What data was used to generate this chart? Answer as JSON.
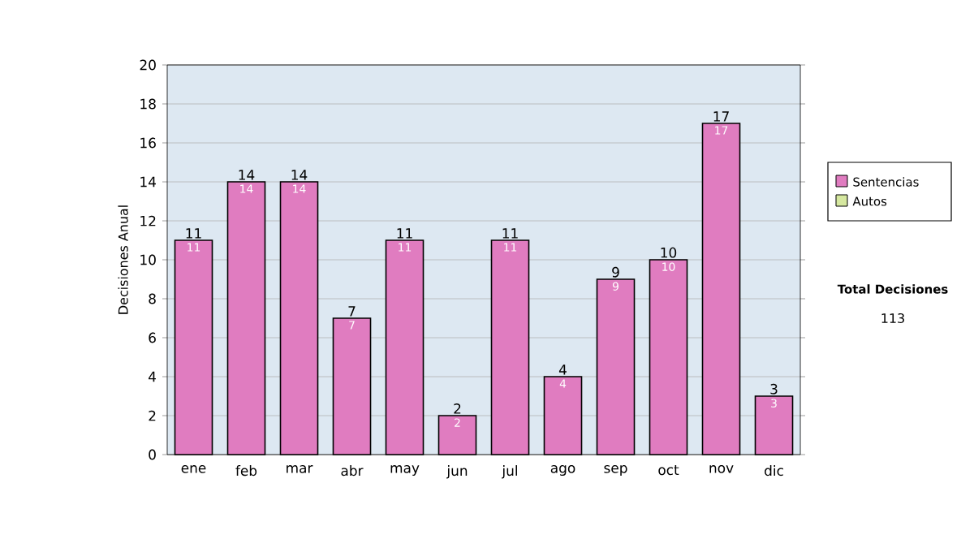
{
  "chart_data": {
    "type": "bar",
    "ylabel": "Decisiones Anual",
    "categories": [
      "ene",
      "feb",
      "mar",
      "abr",
      "may",
      "jun",
      "jul",
      "ago",
      "sep",
      "oct",
      "nov",
      "dic"
    ],
    "series": [
      {
        "name": "Sentencias",
        "color": "#e07cc0",
        "values": [
          11,
          14,
          14,
          7,
          11,
          2,
          11,
          4,
          9,
          10,
          17,
          3
        ],
        "value_labels": [
          "11",
          "14",
          "14",
          "7",
          "11",
          "2",
          "11",
          "4",
          "9",
          "10",
          "17",
          "3"
        ]
      },
      {
        "name": "Autos",
        "color": "#d6e8a0",
        "values": [
          0,
          0,
          0,
          0,
          0,
          0,
          0,
          0,
          0,
          0,
          0,
          0
        ]
      }
    ],
    "stacked": true,
    "totals": [
      "11",
      "14",
      "14",
      "7",
      "11",
      "2",
      "11",
      "4",
      "9",
      "10",
      "17",
      "3"
    ],
    "ylim": [
      0,
      20
    ],
    "yticks": [
      0,
      2,
      4,
      6,
      8,
      10,
      12,
      14,
      16,
      18,
      20
    ],
    "grid": "y",
    "legend": "right",
    "annotations": [
      "Total Decisiones",
      "113"
    ]
  }
}
